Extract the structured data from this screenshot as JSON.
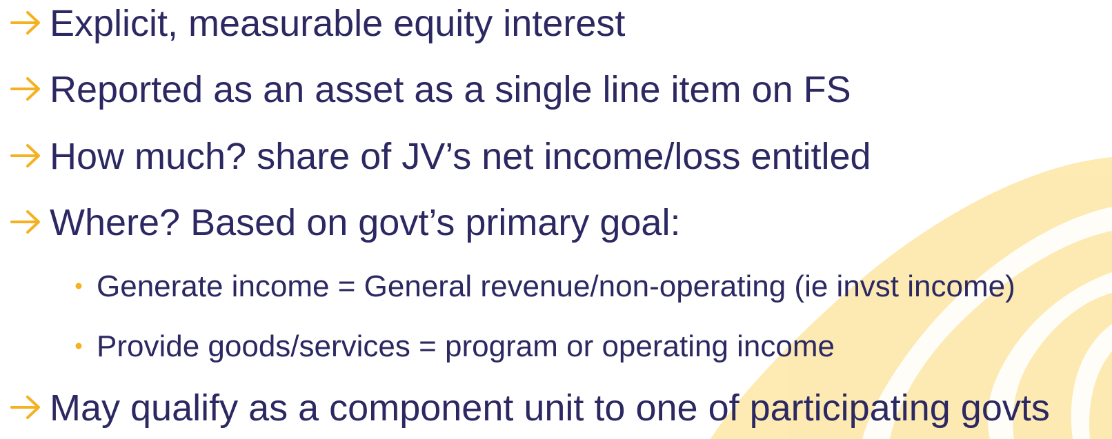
{
  "items": [
    {
      "level": 1,
      "text": "Explicit, measurable equity interest"
    },
    {
      "level": 1,
      "text": "Reported as an asset as a single line item on FS"
    },
    {
      "level": 1,
      "text": "How much? share of JV’s net income/loss entitled"
    },
    {
      "level": 1,
      "text": "Where? Based on govt’s primary goal:"
    },
    {
      "level": 2,
      "text": "Generate income = General revenue/non-operating (ie invst income)"
    },
    {
      "level": 2,
      "text": "Provide goods/services = program or operating income"
    },
    {
      "level": 1,
      "text": "May qualify as a component unit to one of participating govts"
    }
  ]
}
